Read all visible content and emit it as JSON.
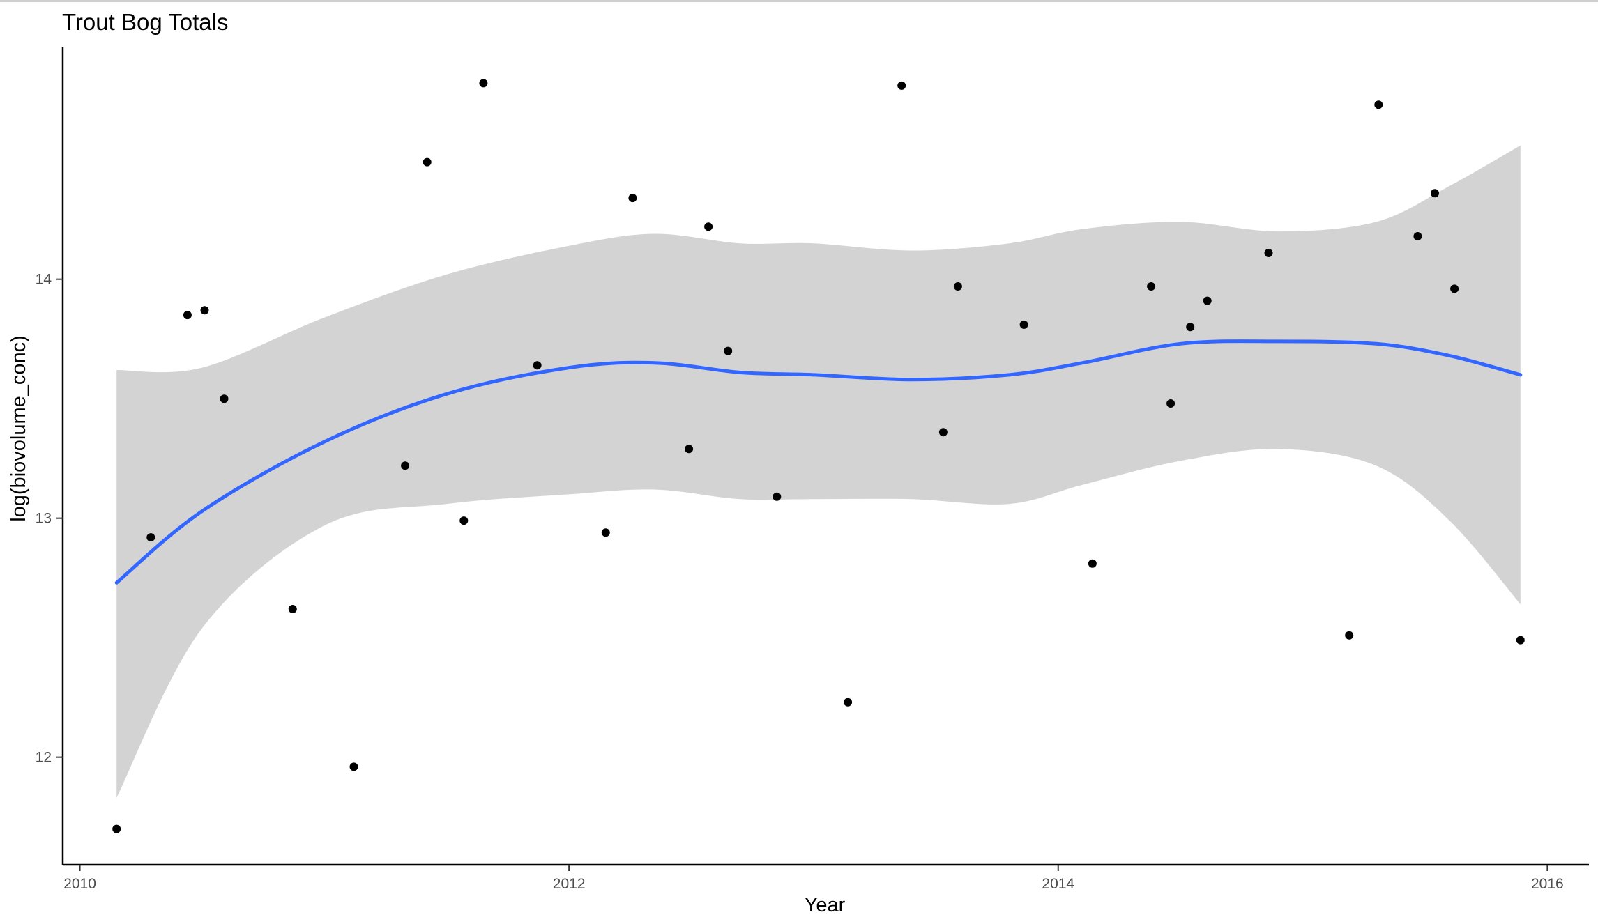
{
  "chart_data": {
    "type": "scatter",
    "title": "Trout Bog Totals",
    "xlabel": "Year",
    "ylabel": "log(biovolume_conc)",
    "xlim": [
      2009.93,
      2016.17
    ],
    "ylim": [
      11.55,
      14.97
    ],
    "x_ticks": [
      {
        "value": 2010,
        "label": "2010"
      },
      {
        "value": 2012,
        "label": "2012"
      },
      {
        "value": 2014,
        "label": "2014"
      },
      {
        "value": 2016,
        "label": "2016"
      }
    ],
    "y_ticks": [
      {
        "value": 12,
        "label": "12"
      },
      {
        "value": 13,
        "label": "13"
      },
      {
        "value": 14,
        "label": "14"
      }
    ],
    "grid": false,
    "points": [
      {
        "x": 2010.15,
        "y": 11.7
      },
      {
        "x": 2010.29,
        "y": 12.92
      },
      {
        "x": 2010.44,
        "y": 13.85
      },
      {
        "x": 2010.51,
        "y": 13.87
      },
      {
        "x": 2010.59,
        "y": 13.5
      },
      {
        "x": 2010.87,
        "y": 12.62
      },
      {
        "x": 2011.12,
        "y": 11.96
      },
      {
        "x": 2011.33,
        "y": 13.22
      },
      {
        "x": 2011.42,
        "y": 14.49
      },
      {
        "x": 2011.57,
        "y": 12.99
      },
      {
        "x": 2011.65,
        "y": 14.82
      },
      {
        "x": 2011.87,
        "y": 13.64
      },
      {
        "x": 2012.15,
        "y": 12.94
      },
      {
        "x": 2012.26,
        "y": 14.34
      },
      {
        "x": 2012.49,
        "y": 13.29
      },
      {
        "x": 2012.57,
        "y": 14.22
      },
      {
        "x": 2012.65,
        "y": 13.7
      },
      {
        "x": 2012.85,
        "y": 13.09
      },
      {
        "x": 2013.14,
        "y": 12.23
      },
      {
        "x": 2013.36,
        "y": 14.81
      },
      {
        "x": 2013.53,
        "y": 13.36
      },
      {
        "x": 2013.59,
        "y": 13.97
      },
      {
        "x": 2013.86,
        "y": 13.81
      },
      {
        "x": 2014.14,
        "y": 12.81
      },
      {
        "x": 2014.38,
        "y": 13.97
      },
      {
        "x": 2014.46,
        "y": 13.48
      },
      {
        "x": 2014.54,
        "y": 13.8
      },
      {
        "x": 2014.61,
        "y": 13.91
      },
      {
        "x": 2014.86,
        "y": 14.11
      },
      {
        "x": 2015.19,
        "y": 12.51
      },
      {
        "x": 2015.31,
        "y": 14.73
      },
      {
        "x": 2015.47,
        "y": 14.18
      },
      {
        "x": 2015.54,
        "y": 14.36
      },
      {
        "x": 2015.62,
        "y": 13.96
      },
      {
        "x": 2015.89,
        "y": 12.49
      }
    ],
    "smooth": {
      "method": "loess",
      "x": [
        2010.15,
        2010.5,
        2011.0,
        2011.5,
        2012.0,
        2012.35,
        2012.7,
        2013.0,
        2013.4,
        2013.8,
        2014.1,
        2014.5,
        2014.9,
        2015.3,
        2015.6,
        2015.89
      ],
      "fit": [
        12.73,
        13.03,
        13.32,
        13.52,
        13.63,
        13.65,
        13.61,
        13.6,
        13.58,
        13.6,
        13.65,
        13.73,
        13.74,
        13.73,
        13.68,
        13.6
      ],
      "lower": [
        11.83,
        12.54,
        12.97,
        13.06,
        13.1,
        13.12,
        13.08,
        13.08,
        13.08,
        13.06,
        13.14,
        13.24,
        13.29,
        13.22,
        12.99,
        12.64
      ],
      "upper": [
        13.62,
        13.63,
        13.84,
        14.02,
        14.14,
        14.19,
        14.15,
        14.15,
        14.12,
        14.15,
        14.21,
        14.24,
        14.2,
        14.24,
        14.39,
        14.56
      ]
    },
    "colors": {
      "points": "#000000",
      "line": "#3366ff",
      "ribbon": "#d3d3d3",
      "axis": "#000000"
    }
  }
}
